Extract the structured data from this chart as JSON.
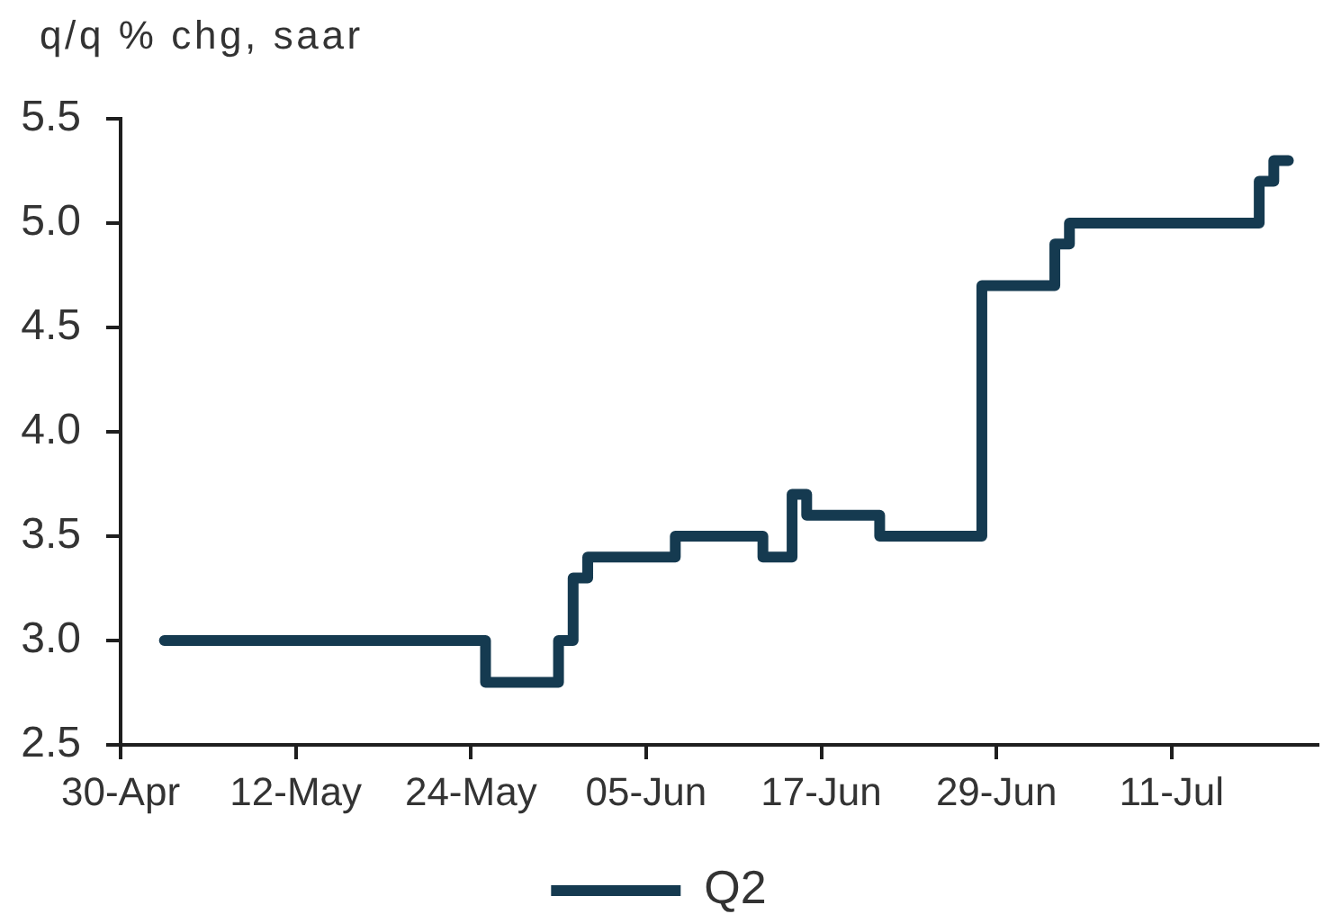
{
  "chart_data": {
    "type": "step",
    "ylabel": "q/q % chg, saar",
    "x": [
      "--05-03",
      "--05-25",
      "--05-30",
      "--05-31",
      "--06-01",
      "--06-07",
      "--06-13",
      "--06-15",
      "--06-16",
      "--06-21",
      "--06-28",
      "--07-03",
      "--07-04",
      "--07-17",
      "--07-18",
      "--07-19"
    ],
    "series": [
      {
        "name": "Q2",
        "color": "#153a50",
        "values": [
          3.0,
          2.8,
          3.0,
          3.3,
          3.4,
          3.5,
          3.4,
          3.7,
          3.6,
          3.5,
          4.7,
          4.9,
          5.0,
          5.2,
          5.3,
          5.3
        ]
      }
    ],
    "xlim": [
      "--04-30",
      "--07-21"
    ],
    "xticks": [
      {
        "value": "--04-30",
        "label": "30-Apr"
      },
      {
        "value": "--05-12",
        "label": "12-May"
      },
      {
        "value": "--05-24",
        "label": "24-May"
      },
      {
        "value": "--06-05",
        "label": "05-Jun"
      },
      {
        "value": "--06-17",
        "label": "17-Jun"
      },
      {
        "value": "--06-29",
        "label": "29-Jun"
      },
      {
        "value": "--07-11",
        "label": "11-Jul"
      }
    ],
    "ylim": [
      2.5,
      5.5
    ],
    "yticks": [
      2.5,
      {
        "value": 3,
        "label": "3.0"
      },
      3.5,
      {
        "value": 4,
        "label": "4.0"
      },
      4.5,
      {
        "value": 5,
        "label": "5.0"
      },
      5.5
    ],
    "grid": false,
    "legend": "bottom",
    "marker": "none",
    "line_style": "solid"
  }
}
